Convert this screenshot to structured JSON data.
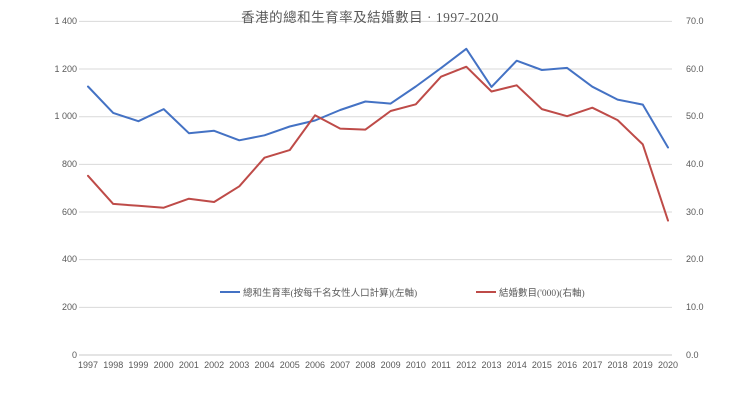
{
  "chart_data": {
    "type": "line",
    "title": "香港的總和生育率及結婚數目 · 1997-2020",
    "categories": [
      "1997",
      "1998",
      "1999",
      "2000",
      "2001",
      "2002",
      "2003",
      "2004",
      "2005",
      "2006",
      "2007",
      "2008",
      "2009",
      "2010",
      "2011",
      "2012",
      "2013",
      "2014",
      "2015",
      "2016",
      "2017",
      "2018",
      "2019",
      "2020"
    ],
    "series": [
      {
        "name": "總和生育率(按每千名女性人口計算)(左軸)",
        "axis": "left",
        "color": "#4472C4",
        "values": [
          1127,
          1016,
          981,
          1032,
          931,
          941,
          901,
          922,
          959,
          984,
          1028,
          1064,
          1055,
          1127,
          1204,
          1285,
          1125,
          1235,
          1196,
          1205,
          1126,
          1072,
          1051,
          871
        ]
      },
      {
        "name": "結婚數目('000)(右軸)",
        "axis": "right",
        "color": "#BE4B48",
        "values": [
          37.6,
          31.7,
          31.3,
          30.9,
          32.8,
          32.1,
          35.4,
          41.4,
          43.0,
          50.3,
          47.5,
          47.3,
          51.2,
          52.6,
          58.4,
          60.5,
          55.3,
          56.6,
          51.6,
          50.1,
          51.9,
          49.3,
          44.2,
          28.2
        ]
      }
    ],
    "left_axis": {
      "range": [
        0,
        1400
      ],
      "tick_labels": [
        "0",
        "200",
        "400",
        "600",
        "800",
        "1 000",
        "1 200",
        "1 400"
      ]
    },
    "right_axis": {
      "range": [
        0.0,
        70.0
      ],
      "tick_labels": [
        "0.0",
        "10.0",
        "20.0",
        "30.0",
        "40.0",
        "50.0",
        "60.0",
        "70.0"
      ]
    },
    "grid": true,
    "legend_position": "bottom-inside"
  },
  "colors": {
    "gridline": "#D9D9D9",
    "axis_line": "#C8C8C8",
    "text": "#595959",
    "fertility_line": "#4472C4",
    "marriage_line": "#BE4B48"
  }
}
